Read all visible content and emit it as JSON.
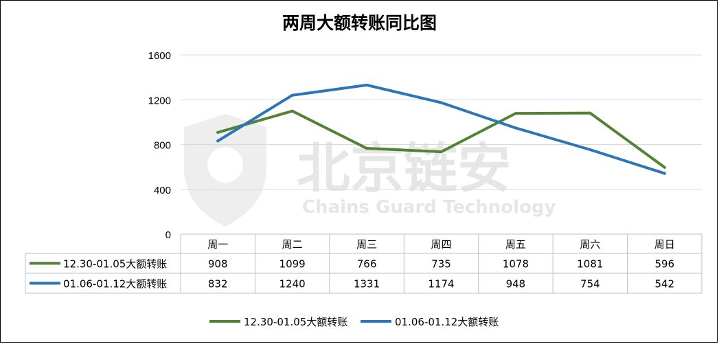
{
  "chart_data": {
    "type": "line",
    "title": "两周大额转账同比图",
    "categories": [
      "周一",
      "周二",
      "周三",
      "周四",
      "周五",
      "周六",
      "周日"
    ],
    "series": [
      {
        "name": "12.30-01.05大额转账",
        "color": "#548235",
        "values": [
          908,
          1099,
          766,
          735,
          1078,
          1081,
          596
        ]
      },
      {
        "name": "01.06-01.12大额转账",
        "color": "#2E75B6",
        "values": [
          832,
          1240,
          1331,
          1174,
          948,
          754,
          542
        ]
      }
    ],
    "ylim": [
      0,
      1600
    ],
    "yticks": [
      0,
      400,
      800,
      1200,
      1600
    ],
    "grid": true,
    "legend": "bottom",
    "data_table": true
  },
  "watermark": {
    "text": "北京链安",
    "subtext": "Chains Guard Technology"
  }
}
